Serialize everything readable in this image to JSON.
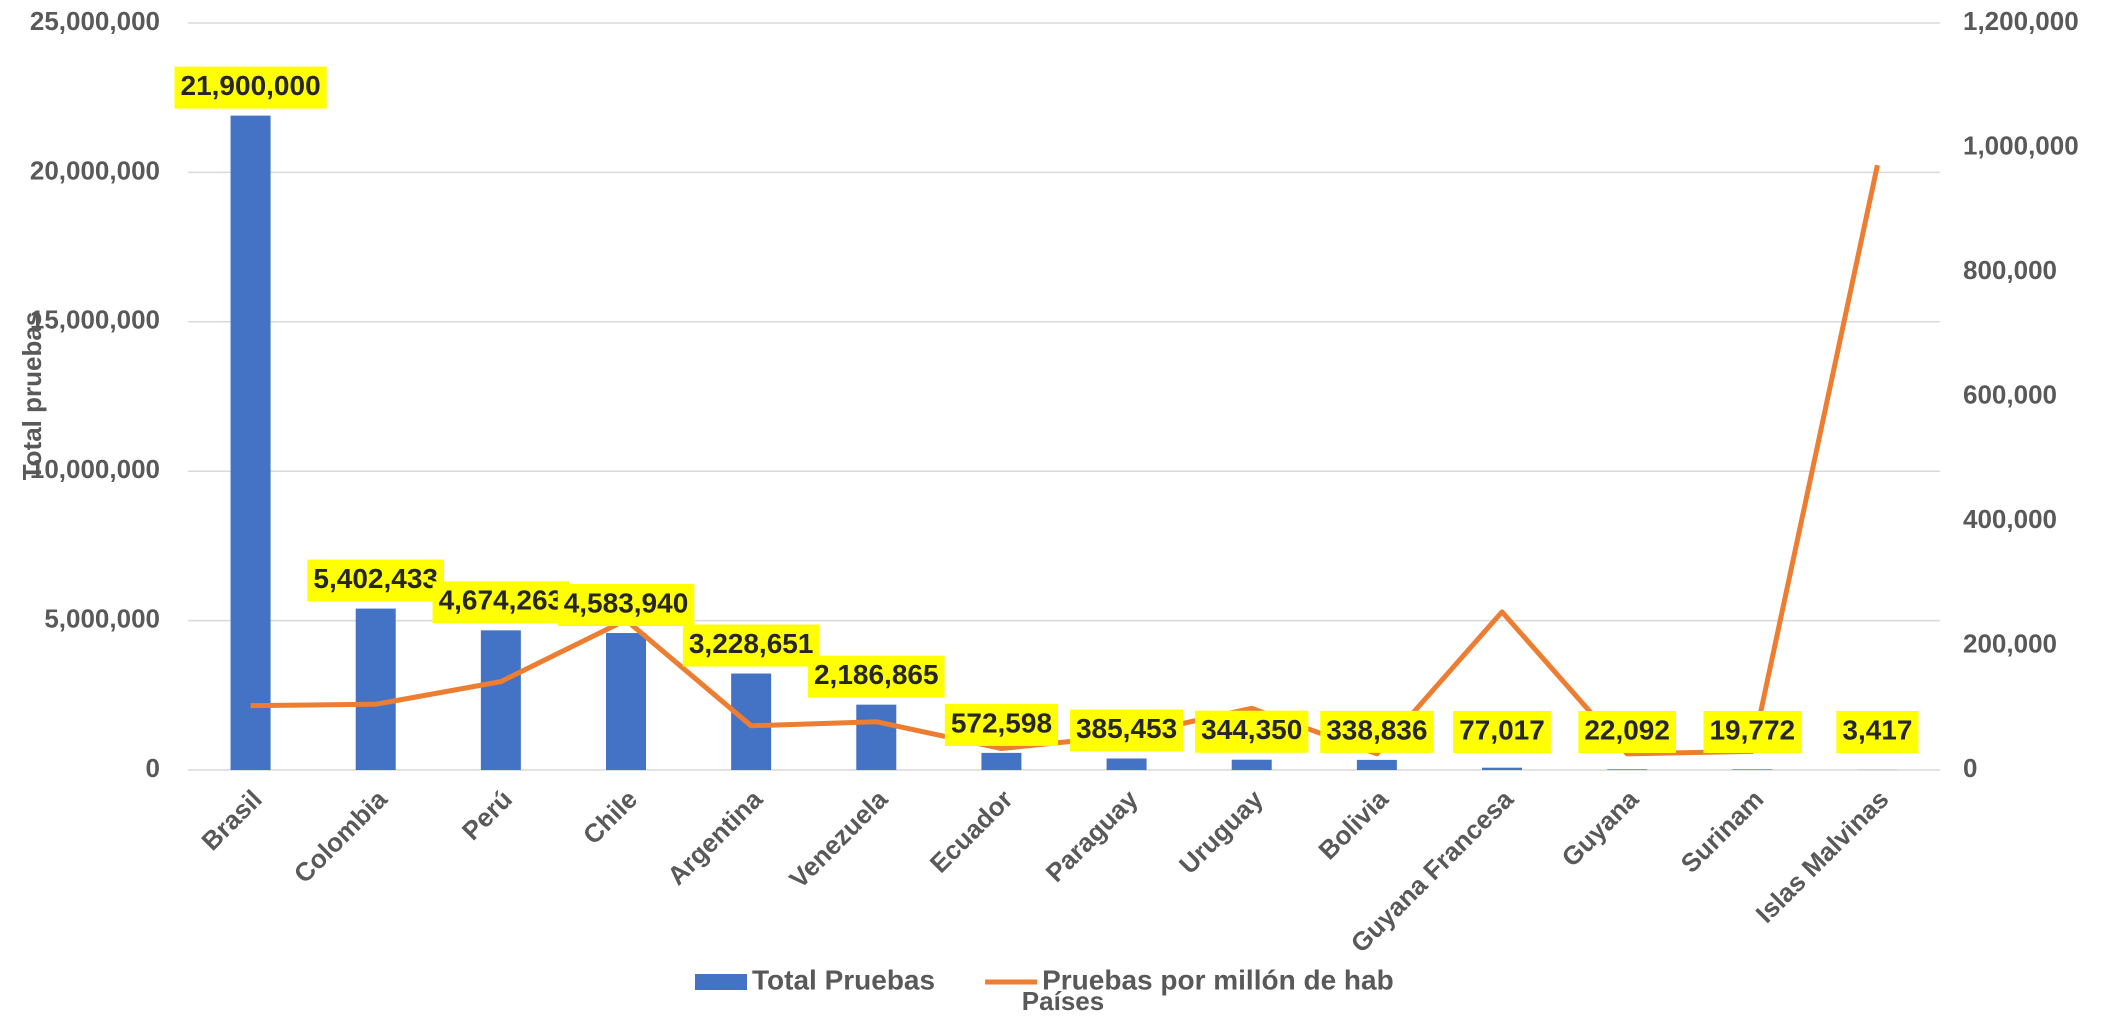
{
  "chart_data": {
    "type": "bar",
    "x_label": "Países",
    "y_label": "Total pruebas",
    "categories": [
      "Brasil",
      "Colombia",
      "Perú",
      "Chile",
      "Argentina",
      "Venezuela",
      "Ecuador",
      "Paraguay",
      "Uruguay",
      "Bolivia",
      "Guyana Francesa",
      "Guyana",
      "Surinam",
      "Islas Malvinas"
    ],
    "series": [
      {
        "name": "Total Pruebas",
        "type": "bar",
        "color": "#4472c4",
        "values": [
          21900000,
          5402433,
          4674263,
          4583940,
          3228651,
          2186865,
          572598,
          385453,
          344350,
          338836,
          77017,
          22092,
          19772,
          3417
        ],
        "value_labels": [
          "21,900,000",
          "5,402,433",
          "4,674,263",
          "4,583,940",
          "3,228,651",
          "2,186,865",
          "572,598",
          "385,453",
          "344,350",
          "338,836",
          "77,017",
          "22,092",
          "19,772",
          "3,417"
        ]
      },
      {
        "name": "Pruebas por millón de hab",
        "type": "line",
        "axis": "y2",
        "color": "#ed7d31",
        "values": [
          103400,
          105600,
          142000,
          241000,
          71000,
          77600,
          34500,
          55000,
          99000,
          26000,
          254000,
          26000,
          30000,
          971600
        ]
      }
    ],
    "ylim": [
      0,
      25000000
    ],
    "yticks": [
      0,
      {
        "value": 5000000,
        "label": "5,000,000"
      },
      {
        "value": 10000000,
        "label": "10,000,000"
      },
      {
        "value": 15000000,
        "label": "15,000,000"
      },
      {
        "value": 20000000,
        "label": "20,000,000"
      },
      {
        "value": 25000000,
        "label": "25,000,000"
      }
    ],
    "y2lim": [
      0,
      1200000
    ],
    "y2ticks": [
      0,
      {
        "value": 200000,
        "label": "200,000"
      },
      {
        "value": 400000,
        "label": "400,000"
      },
      {
        "value": 600000,
        "label": "600,000"
      },
      {
        "value": 800000,
        "label": "800,000"
      },
      {
        "value": 1000000,
        "label": "1,000,000"
      },
      {
        "value": 1200000,
        "label": "1,200,000"
      }
    ],
    "grid": true,
    "legend": "bottom",
    "label_background": "#ffff00"
  }
}
